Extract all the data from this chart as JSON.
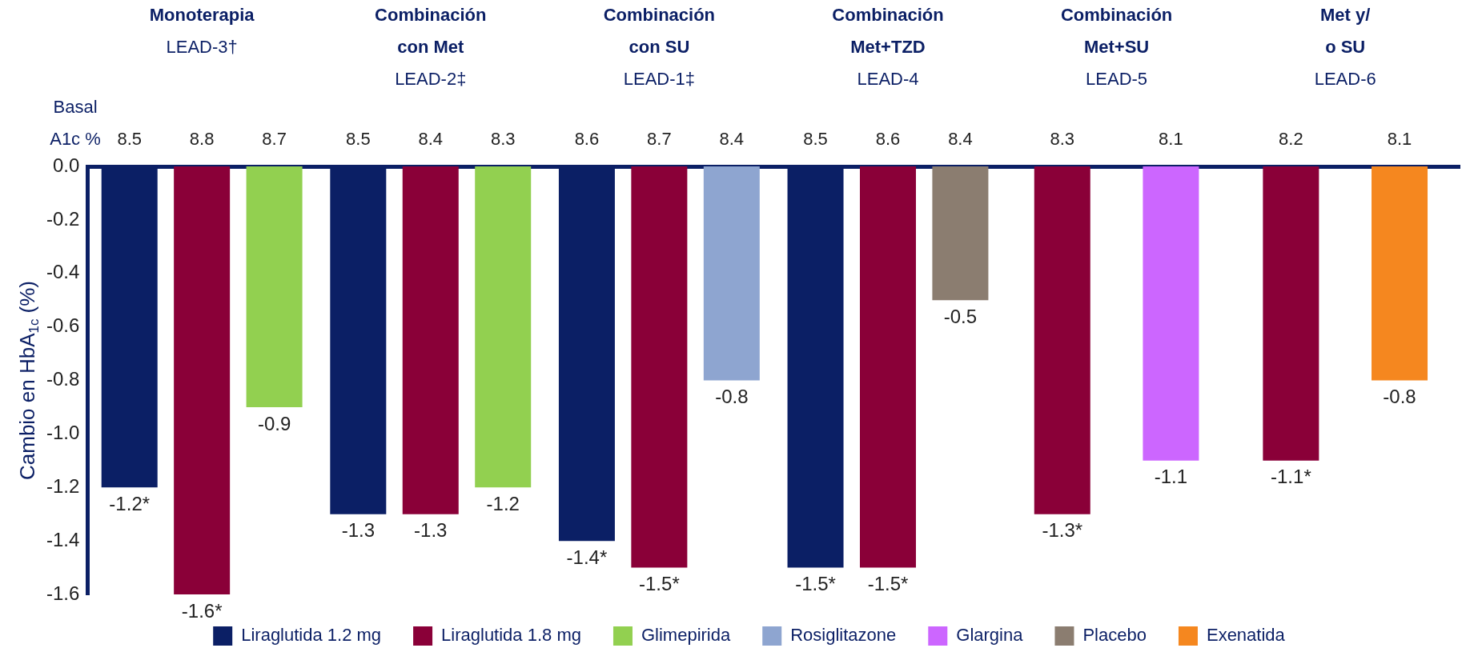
{
  "chart_data": {
    "type": "bar",
    "ylabel": "Cambio en HbA$_{1c}$ (%)",
    "categories": [
      "Monoterapia\nLEAD-3†",
      "Combinación\ncon Met\nLEAD-2‡",
      "Combinación\ncon SU\nLEAD-1‡",
      "Combinación\nMet+TZD\nLEAD-4",
      "Combinación\nMet+SU\nLEAD-5",
      "Met y/\no SU\nLEAD-6"
    ],
    "series": [
      {
        "name": "Liraglutida 1.2 mg",
        "color": "#0b1f65",
        "values": [
          -1.2,
          -1.3,
          -1.4,
          -1.5,
          null,
          null
        ],
        "value_labels": [
          "-1.2*",
          "-1.3",
          "-1.4*",
          "-1.5*",
          null,
          null
        ]
      },
      {
        "name": "Liraglutida 1.8 mg",
        "color": "#8a0038",
        "values": [
          -1.6,
          -1.3,
          -1.5,
          -1.5,
          -1.3,
          -1.1
        ],
        "value_labels": [
          "-1.6*",
          "-1.3",
          "-1.5*",
          "-1.5*",
          "-1.3*",
          "-1.1*"
        ]
      },
      {
        "name": "Glimepirida",
        "color": "#92d050",
        "values": [
          -0.9,
          -1.2,
          null,
          null,
          null,
          null
        ],
        "value_labels": [
          "-0.9",
          "-1.2",
          null,
          null,
          null,
          null
        ]
      },
      {
        "name": "Rosiglitazone",
        "color": "#8ea5d0",
        "values": [
          null,
          null,
          -0.8,
          null,
          null,
          null
        ],
        "value_labels": [
          null,
          null,
          "-0.8",
          null,
          null,
          null
        ]
      },
      {
        "name": "Glargina",
        "color": "#cc66ff",
        "values": [
          null,
          null,
          null,
          null,
          -1.1,
          null
        ],
        "value_labels": [
          null,
          null,
          null,
          null,
          "-1.1",
          null
        ]
      },
      {
        "name": "Placebo",
        "color": "#8b7d70",
        "values": [
          null,
          null,
          null,
          -0.5,
          null,
          null
        ],
        "value_labels": [
          null,
          null,
          null,
          "-0.5",
          null,
          null
        ]
      },
      {
        "name": "Exenatida",
        "color": "#f5871f",
        "values": [
          null,
          null,
          null,
          null,
          null,
          -0.8
        ],
        "value_labels": [
          null,
          null,
          null,
          null,
          null,
          "-0.8"
        ]
      }
    ],
    "ylim": [
      -1.6,
      0
    ],
    "yticks": [
      {
        "value": 0,
        "label": "0.0"
      },
      {
        "value": -0.2,
        "label": "-0.2"
      },
      {
        "value": -0.4,
        "label": "-0.4"
      },
      {
        "value": -0.6,
        "label": "-0.6"
      },
      {
        "value": -0.8,
        "label": "-0.8"
      },
      {
        "value": -1,
        "label": "-1.0"
      },
      {
        "value": -1.2,
        "label": "-1.2"
      },
      {
        "value": -1.4,
        "label": "-1.4"
      },
      {
        "value": -1.6,
        "label": "-1.6"
      }
    ],
    "annotations": [
      "Basal\nA1c %",
      "8.5",
      "8.8",
      "8.7",
      "8.5",
      "8.4",
      "8.3",
      "8.6",
      "8.7",
      "8.4",
      "8.5",
      "8.6",
      "8.4",
      "8.3",
      "8.1",
      "8.2",
      "8.1"
    ],
    "legend": "bottom",
    "grid": false
  }
}
